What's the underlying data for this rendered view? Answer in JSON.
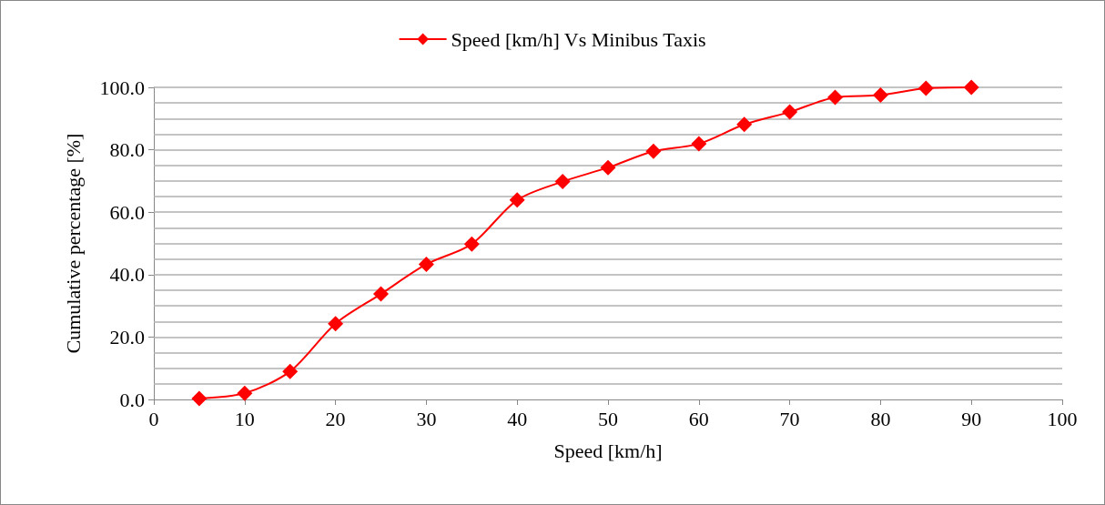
{
  "chart_data": {
    "type": "line",
    "xlabel": "Speed [km/h]",
    "ylabel": "Cumulative percentage [%]",
    "x": [
      5,
      10,
      15,
      20,
      25,
      30,
      35,
      40,
      45,
      50,
      55,
      60,
      65,
      70,
      75,
      80,
      85,
      90
    ],
    "series": [
      {
        "name": "Speed [km/h] Vs Minibus Taxis",
        "color": "#ff0000",
        "values": [
          0.3,
          2.0,
          9.0,
          24.3,
          33.8,
          43.3,
          49.8,
          63.9,
          69.8,
          74.3,
          79.5,
          81.9,
          88.1,
          92.1,
          96.8,
          97.5,
          99.7,
          100.0
        ]
      }
    ],
    "xlim": [
      0,
      100
    ],
    "xticks": [
      0,
      10,
      20,
      30,
      40,
      50,
      60,
      70,
      80,
      90,
      100
    ],
    "ylim": [
      0,
      100
    ],
    "yticks": [
      {
        "value": 0,
        "label": "0.0"
      },
      {
        "value": 5,
        "label": null
      },
      {
        "value": 10,
        "label": null
      },
      {
        "value": 15,
        "label": null
      },
      {
        "value": 20,
        "label": "20.0"
      },
      {
        "value": 25,
        "label": null
      },
      {
        "value": 30,
        "label": null
      },
      {
        "value": 35,
        "label": null
      },
      {
        "value": 40,
        "label": "40.0"
      },
      {
        "value": 45,
        "label": null
      },
      {
        "value": 50,
        "label": null
      },
      {
        "value": 55,
        "label": null
      },
      {
        "value": 60,
        "label": "60.0"
      },
      {
        "value": 65,
        "label": null
      },
      {
        "value": 70,
        "label": null
      },
      {
        "value": 75,
        "label": null
      },
      {
        "value": 80,
        "label": "80.0"
      },
      {
        "value": 85,
        "label": null
      },
      {
        "value": 90,
        "label": null
      },
      {
        "value": 95,
        "label": null
      },
      {
        "value": 100,
        "label": "100.0"
      }
    ],
    "grid": "y",
    "legend": "top",
    "marker": "diamond",
    "line_style": "solid"
  }
}
